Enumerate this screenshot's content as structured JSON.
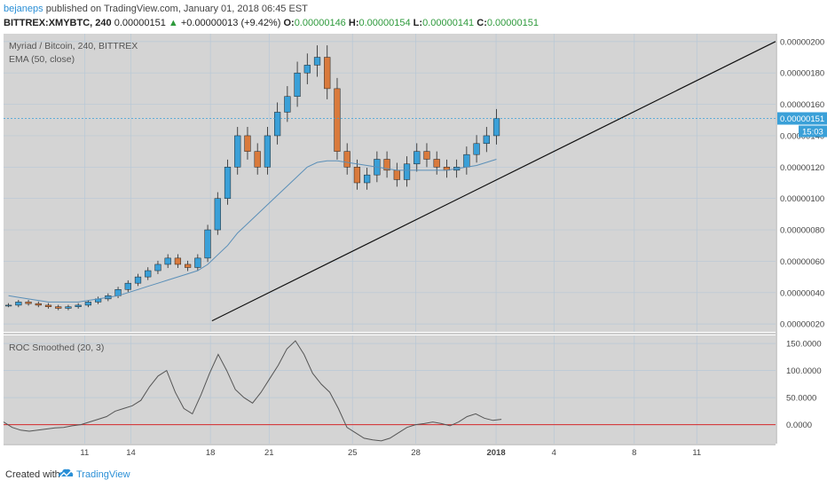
{
  "header": {
    "author": "bejaneps",
    "published_text": "published on TradingView.com, January 01, 2018 06:45 EST",
    "symbol": "BITTREX:XMYBTC, 240",
    "last": "0.00000151",
    "change": "+0.00000013 (+9.42%)",
    "o_label": "O:",
    "o_val": "0.00000146",
    "h_label": "H:",
    "h_val": "0.00000154",
    "l_label": "L:",
    "l_val": "0.00000141",
    "c_label": "C:",
    "c_val": "0.00000151"
  },
  "main_pane": {
    "title": "Myriad / Bitcoin, 240, BITTREX",
    "indicator": "EMA (50, close)",
    "price_tag": "0.00000151",
    "time_tag": "15:03"
  },
  "lower_pane": {
    "title": "ROC Smoothed (20, 3)"
  },
  "footer": {
    "created_with": "Created with",
    "brand": "TradingView"
  },
  "colors": {
    "pane_bg": "#d4d4d4",
    "grid": "#b8c8d6",
    "bull": "#3aa0d8",
    "bear": "#d97a3c",
    "ema": "#5a8fb8",
    "roc": "#555555",
    "zero_line": "#d62a2a",
    "trendline": "#111111"
  },
  "chart_data": [
    {
      "type": "line",
      "name": "candlestick",
      "title": "Myriad / Bitcoin, 240, BITTREX",
      "x_ticks": [
        "11",
        "14",
        "18",
        "21",
        "25",
        "28",
        "2018",
        "4",
        "8",
        "11"
      ],
      "y_ticks": [
        "0.00000200",
        "0.00000180",
        "0.00000160",
        "0.00000140",
        "0.00000120",
        "0.00000100",
        "0.00000080",
        "0.00000060",
        "0.00000040",
        "0.00000020"
      ],
      "ylim": [
        1.5e-07,
        2.05e-06
      ],
      "grid": true,
      "close": [
        3.2e-07,
        3.4e-07,
        3.3e-07,
        3.2e-07,
        3.1e-07,
        3e-07,
        3.1e-07,
        3.2e-07,
        3.4e-07,
        3.6e-07,
        3.8e-07,
        4.2e-07,
        4.6e-07,
        5e-07,
        5.4e-07,
        5.8e-07,
        6.2e-07,
        5.8e-07,
        5.6e-07,
        6.2e-07,
        8e-07,
        1e-06,
        1.2e-06,
        1.4e-06,
        1.3e-06,
        1.2e-06,
        1.4e-06,
        1.55e-06,
        1.65e-06,
        1.8e-06,
        1.85e-06,
        1.9e-06,
        1.7e-06,
        1.3e-06,
        1.2e-06,
        1.1e-06,
        1.15e-06,
        1.25e-06,
        1.18e-06,
        1.12e-06,
        1.22e-06,
        1.3e-06,
        1.25e-06,
        1.2e-06,
        1.18e-06,
        1.2e-06,
        1.28e-06,
        1.35e-06,
        1.4e-06,
        1.51e-06
      ],
      "ema_50": [
        3.8e-07,
        3.7e-07,
        3.6e-07,
        3.5e-07,
        3.4e-07,
        3.4e-07,
        3.4e-07,
        3.4e-07,
        3.5e-07,
        3.6e-07,
        3.7e-07,
        3.8e-07,
        4e-07,
        4.2e-07,
        4.4e-07,
        4.6e-07,
        4.8e-07,
        5e-07,
        5.2e-07,
        5.4e-07,
        5.8e-07,
        6.4e-07,
        7e-07,
        7.8e-07,
        8.4e-07,
        9e-07,
        9.6e-07,
        1.02e-06,
        1.08e-06,
        1.14e-06,
        1.2e-06,
        1.23e-06,
        1.24e-06,
        1.24e-06,
        1.23e-06,
        1.22e-06,
        1.21e-06,
        1.2e-06,
        1.19e-06,
        1.18e-06,
        1.18e-06,
        1.18e-06,
        1.18e-06,
        1.18e-06,
        1.18e-06,
        1.19e-06,
        1.2e-06,
        1.21e-06,
        1.23e-06,
        1.25e-06
      ],
      "trendline": [
        [
          0.27,
          2.2e-07
        ],
        [
          1.0,
          2e-06
        ]
      ],
      "last_price": 1.51e-06
    },
    {
      "type": "line",
      "name": "ROC Smoothed (20, 3)",
      "y_ticks": [
        "150.0000",
        "100.0000",
        "50.0000",
        "0.0000"
      ],
      "ylim": [
        -35,
        165
      ],
      "zero_line": 0,
      "values": [
        5,
        -5,
        -10,
        -12,
        -10,
        -8,
        -6,
        -5,
        -2,
        0,
        5,
        10,
        15,
        25,
        30,
        35,
        45,
        70,
        90,
        100,
        60,
        30,
        20,
        55,
        95,
        130,
        100,
        65,
        50,
        40,
        60,
        85,
        110,
        140,
        155,
        130,
        95,
        75,
        60,
        30,
        -5,
        -15,
        -25,
        -28,
        -30,
        -25,
        -15,
        -5,
        0,
        2,
        5,
        2,
        -2,
        5,
        15,
        20,
        12,
        8,
        10
      ]
    }
  ]
}
